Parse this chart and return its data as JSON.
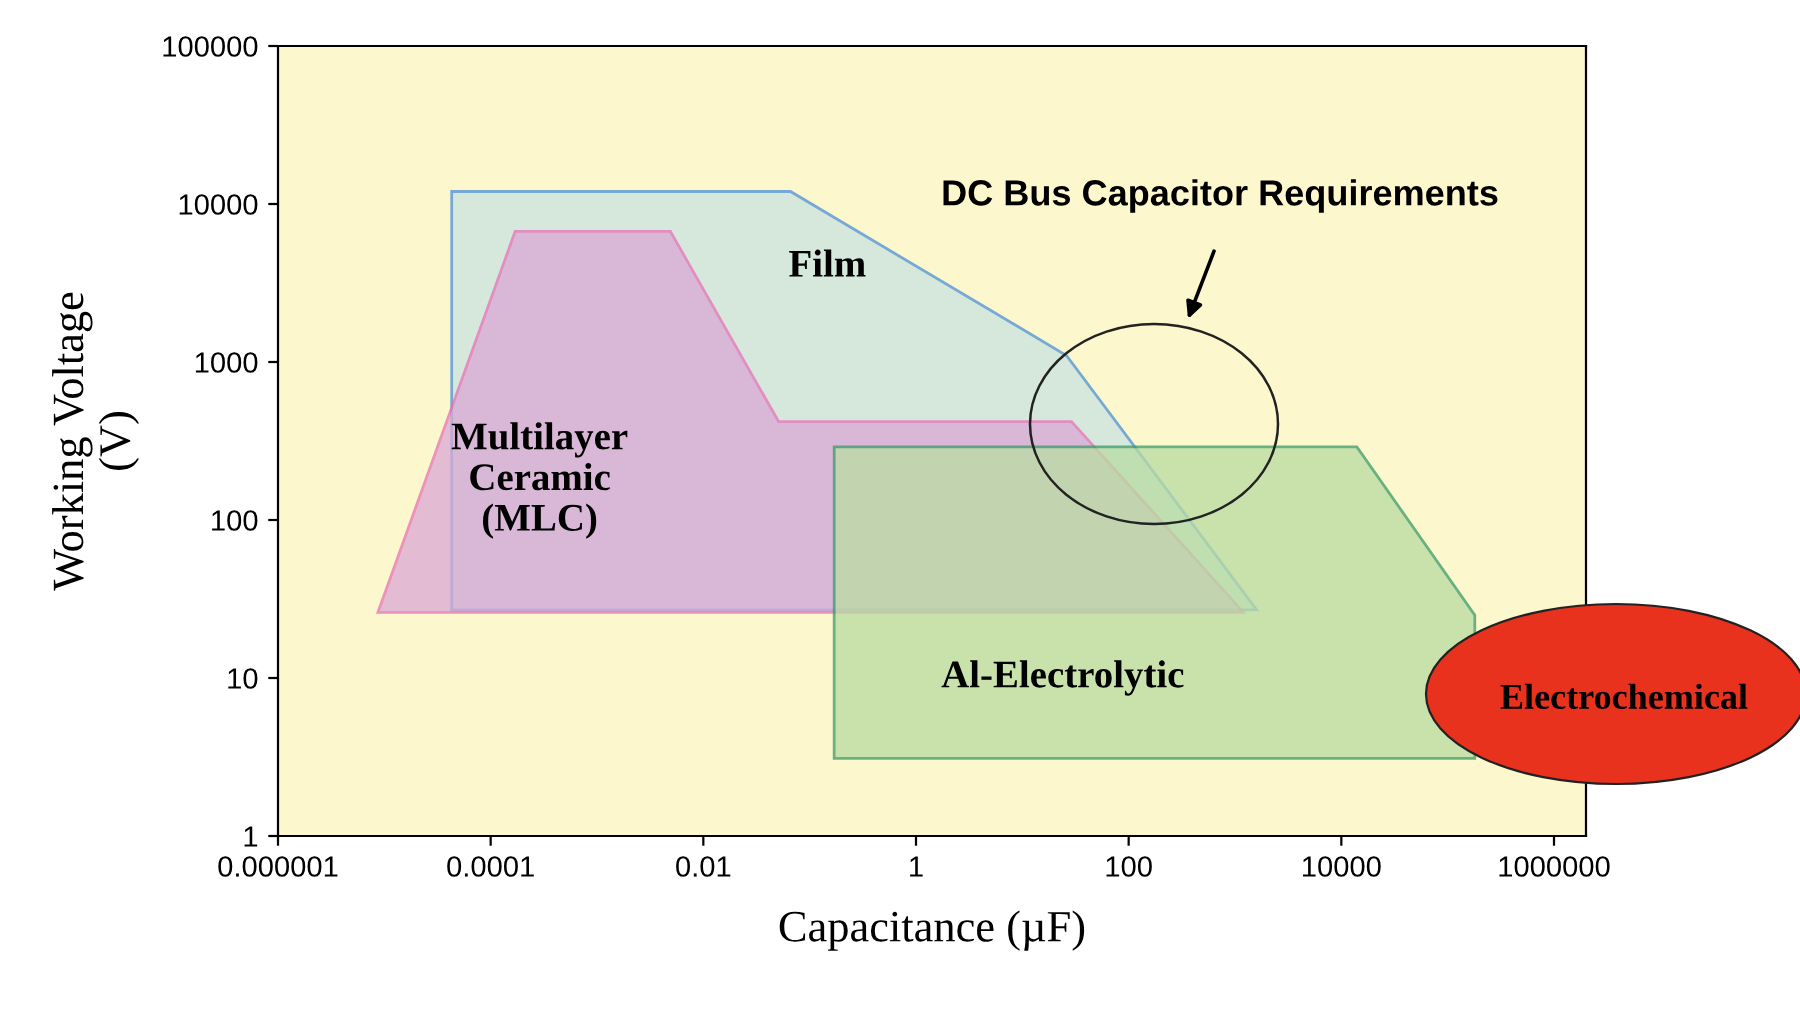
{
  "chart_data": {
    "type": "area",
    "xlabel": "Capacitance (µF)",
    "ylabel": "Working Voltage\n(V)",
    "log": "xy",
    "grid": false,
    "legend": false,
    "xlim": [
      1e-06,
      2000000
    ],
    "ylim": [
      1,
      100000
    ],
    "xticks": [
      {
        "value": 1e-06,
        "label": "0.000001"
      },
      {
        "value": 0.0001,
        "label": "0.0001"
      },
      {
        "value": 0.01,
        "label": "0.01"
      },
      1,
      100,
      10000,
      1000000
    ],
    "yticks": [
      1,
      10,
      100,
      1000,
      10000,
      100000
    ],
    "series": [
      {
        "name": "Film",
        "color": "#c8e3e0",
        "x": [
          4.3e-05,
          0.066,
          26,
          1600,
          4.3e-05
        ],
        "values": [
          12000,
          12000,
          1100,
          27,
          27
        ]
      },
      {
        "name": "Multilayer\nCeramic\n(MLC)",
        "color": "#dba9d6",
        "x": [
          8.7e-06,
          0.00017,
          0.0049,
          0.051,
          29,
          1200
        ],
        "values": [
          26,
          6700,
          6700,
          420,
          420,
          26
        ]
      },
      {
        "name": "Al-Electrolytic",
        "color": "#b9dca2",
        "x": [
          0.17,
          14000,
          180000,
          180000,
          0.17
        ],
        "values": [
          290,
          290,
          25,
          3.1,
          3.1
        ]
      }
    ],
    "annotations": [
      "DC Bus Capacitor Requirements",
      "Electrochemical"
    ]
  }
}
